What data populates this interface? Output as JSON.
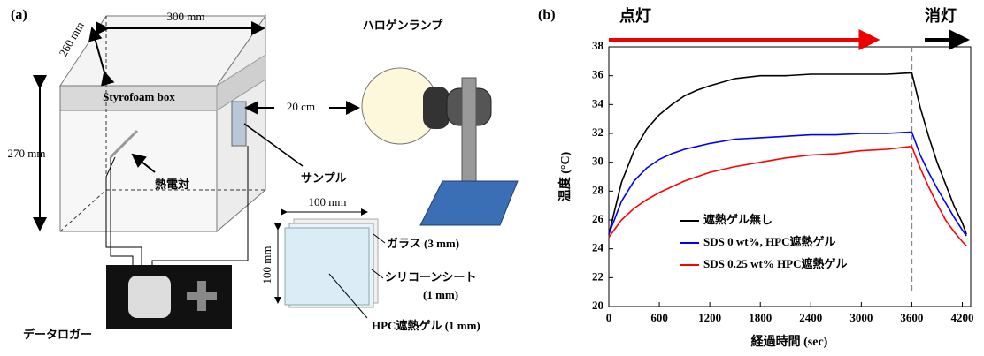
{
  "diagram": {
    "label": "(a)",
    "depth": "260 mm",
    "width": "300 mm",
    "height": "270 mm",
    "box": "Styrofoam box",
    "thermocouple": "熱電対",
    "sample": "サンプル",
    "distance": "20 cm",
    "lamp": "ハロゲンランプ",
    "pane_width": "100 mm",
    "pane_height": "100 mm",
    "glass": "ガラス (3 mm)",
    "silicone": "シリコーンシート",
    "silicone_thickness": "(1 mm)",
    "gel": "HPC遮熱ゲル (1 mm)",
    "logger": "データロガー"
  },
  "chart_data": {
    "type": "line",
    "label": "(b)",
    "on_label": "点灯",
    "off_label": "消灯",
    "xlabel": "経過時間 (sec)",
    "ylabel": "温度 (°C)",
    "x": [
      0,
      150,
      300,
      450,
      600,
      750,
      900,
      1050,
      1200,
      1500,
      1800,
      2100,
      2400,
      2700,
      3000,
      3300,
      3600,
      3700,
      3800,
      3900,
      4000,
      4100,
      4200,
      4250
    ],
    "series": [
      {
        "name": "遮熱ゲル無し",
        "color": "#000000",
        "values": [
          25,
          28.6,
          30.8,
          32.3,
          33.3,
          34.0,
          34.6,
          35.0,
          35.3,
          35.8,
          36.0,
          36.0,
          36.1,
          36.1,
          36.1,
          36.1,
          36.2,
          33.8,
          31.8,
          30.0,
          28.5,
          27.0,
          25.8,
          25.0
        ]
      },
      {
        "name": "SDS  0 wt%, HPC遮熱ゲル",
        "color": "#0000ff",
        "values": [
          25,
          27.3,
          28.7,
          29.6,
          30.2,
          30.6,
          30.9,
          31.1,
          31.3,
          31.6,
          31.7,
          31.8,
          31.9,
          31.9,
          32.0,
          32.0,
          32.1,
          30.5,
          29.3,
          28.2,
          27.2,
          26.2,
          25.3,
          24.9
        ]
      },
      {
        "name": "SDS 0.25 wt% HPC遮熱ゲル",
        "color": "#ff0000",
        "values": [
          24.8,
          26.0,
          26.8,
          27.4,
          27.9,
          28.3,
          28.7,
          29.0,
          29.3,
          29.7,
          30.0,
          30.3,
          30.5,
          30.6,
          30.8,
          30.9,
          31.1,
          29.6,
          28.3,
          27.1,
          26.0,
          25.2,
          24.5,
          24.2
        ]
      }
    ],
    "vline_x": 3600,
    "xlim": [
      0,
      4300
    ],
    "xticks": [
      0,
      600,
      1200,
      1800,
      2400,
      3000,
      3600,
      4200
    ],
    "ylim": [
      20,
      38
    ],
    "yticks": [
      20,
      22,
      24,
      26,
      28,
      30,
      32,
      34,
      36,
      38
    ]
  }
}
